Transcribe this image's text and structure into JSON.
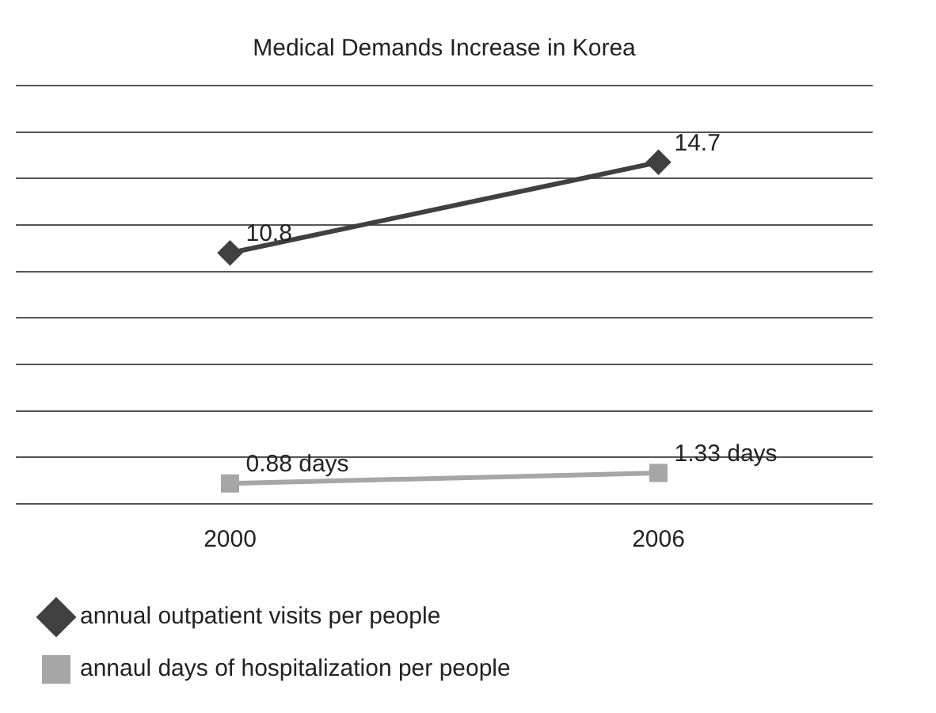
{
  "chart_data": {
    "type": "line",
    "title": "Medical Demands Increase in Korea",
    "categories": [
      "2000",
      "2006"
    ],
    "series": [
      {
        "name": "annual outpatient visits per people",
        "color": "#404040",
        "marker": "diamond",
        "values": [
          10.8,
          14.7
        ],
        "value_labels": [
          "10.8",
          "14.7"
        ]
      },
      {
        "name": "annaul days of hospitalization per people",
        "color": "#a6a6a6",
        "marker": "square",
        "values": [
          0.88,
          1.33
        ],
        "value_labels": [
          "0.88 days",
          "1.33 days"
        ]
      }
    ],
    "ylim": [
      0,
      18
    ],
    "yticks": [
      {
        "value": 0,
        "label": null
      },
      {
        "value": 2,
        "label": null
      },
      {
        "value": 4,
        "label": null
      },
      {
        "value": 6,
        "label": null
      },
      {
        "value": 8,
        "label": null
      },
      {
        "value": 10,
        "label": null
      },
      {
        "value": 12,
        "label": null
      },
      {
        "value": 14,
        "label": null
      },
      {
        "value": 16,
        "label": null
      },
      {
        "value": 18,
        "label": null
      }
    ],
    "grid": "y",
    "tick_labels": "x",
    "legend": "bottom"
  }
}
